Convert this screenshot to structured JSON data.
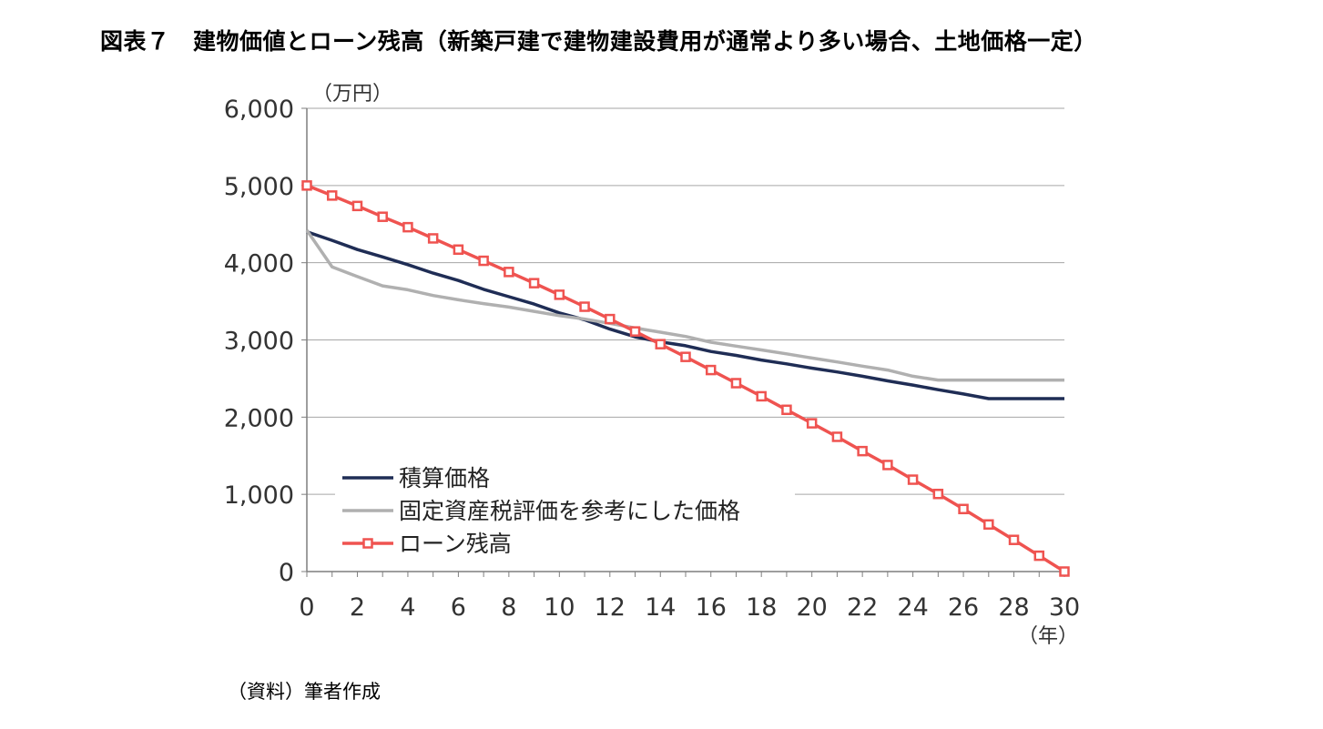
{
  "title": "図表７　建物価値とローン残高（新築戸建で建物建設費用が通常より多い場合、土地価格一定）",
  "source": "（資料）筆者作成",
  "colors": {
    "grid": "#a6a6a6",
    "axis": "#7f7f7f"
  },
  "chart_data": {
    "type": "line",
    "y_unit_label": "（万円）",
    "x_unit_label": "（年）",
    "xlim": [
      0,
      30
    ],
    "ylim": [
      0,
      6000
    ],
    "x_ticks": [
      0,
      2,
      4,
      6,
      8,
      10,
      12,
      14,
      16,
      18,
      20,
      22,
      24,
      26,
      28,
      30
    ],
    "y_ticks": [
      0,
      1000,
      2000,
      3000,
      4000,
      5000,
      6000
    ],
    "y_tick_labels": [
      "0",
      "1,000",
      "2,000",
      "3,000",
      "4,000",
      "5,000",
      "6,000"
    ],
    "grid": "horizontal",
    "legend_position": "lower-left",
    "x": [
      0,
      1,
      2,
      3,
      4,
      5,
      6,
      7,
      8,
      9,
      10,
      11,
      12,
      13,
      14,
      15,
      16,
      17,
      18,
      19,
      20,
      21,
      22,
      23,
      24,
      25,
      26,
      27,
      28,
      29,
      30
    ],
    "series": [
      {
        "name": "積算価格",
        "color": "#1f2d55",
        "marker": "none",
        "values": [
          4400,
          4290,
          4170,
          4075,
          3975,
          3865,
          3770,
          3655,
          3560,
          3465,
          3350,
          3260,
          3140,
          3040,
          2975,
          2925,
          2850,
          2800,
          2740,
          2690,
          2635,
          2585,
          2530,
          2470,
          2415,
          2355,
          2300,
          2240,
          2240,
          2240,
          2240
        ]
      },
      {
        "name": "固定資産税評価を参考にした価格",
        "color": "#b0b0b0",
        "marker": "none",
        "values": [
          4420,
          3945,
          3820,
          3700,
          3650,
          3575,
          3520,
          3470,
          3425,
          3370,
          3315,
          3270,
          3215,
          3155,
          3100,
          3045,
          2970,
          2920,
          2870,
          2820,
          2765,
          2715,
          2660,
          2610,
          2530,
          2480,
          2480,
          2480,
          2480,
          2480,
          2480
        ]
      },
      {
        "name": "ローン残高",
        "color": "#ef5350",
        "marker": "square",
        "values": [
          5000,
          4870,
          4735,
          4595,
          4460,
          4315,
          4170,
          4025,
          3880,
          3735,
          3585,
          3430,
          3270,
          3110,
          2945,
          2780,
          2610,
          2440,
          2270,
          2095,
          1920,
          1745,
          1560,
          1380,
          1190,
          1005,
          810,
          610,
          410,
          205,
          0
        ]
      }
    ]
  }
}
